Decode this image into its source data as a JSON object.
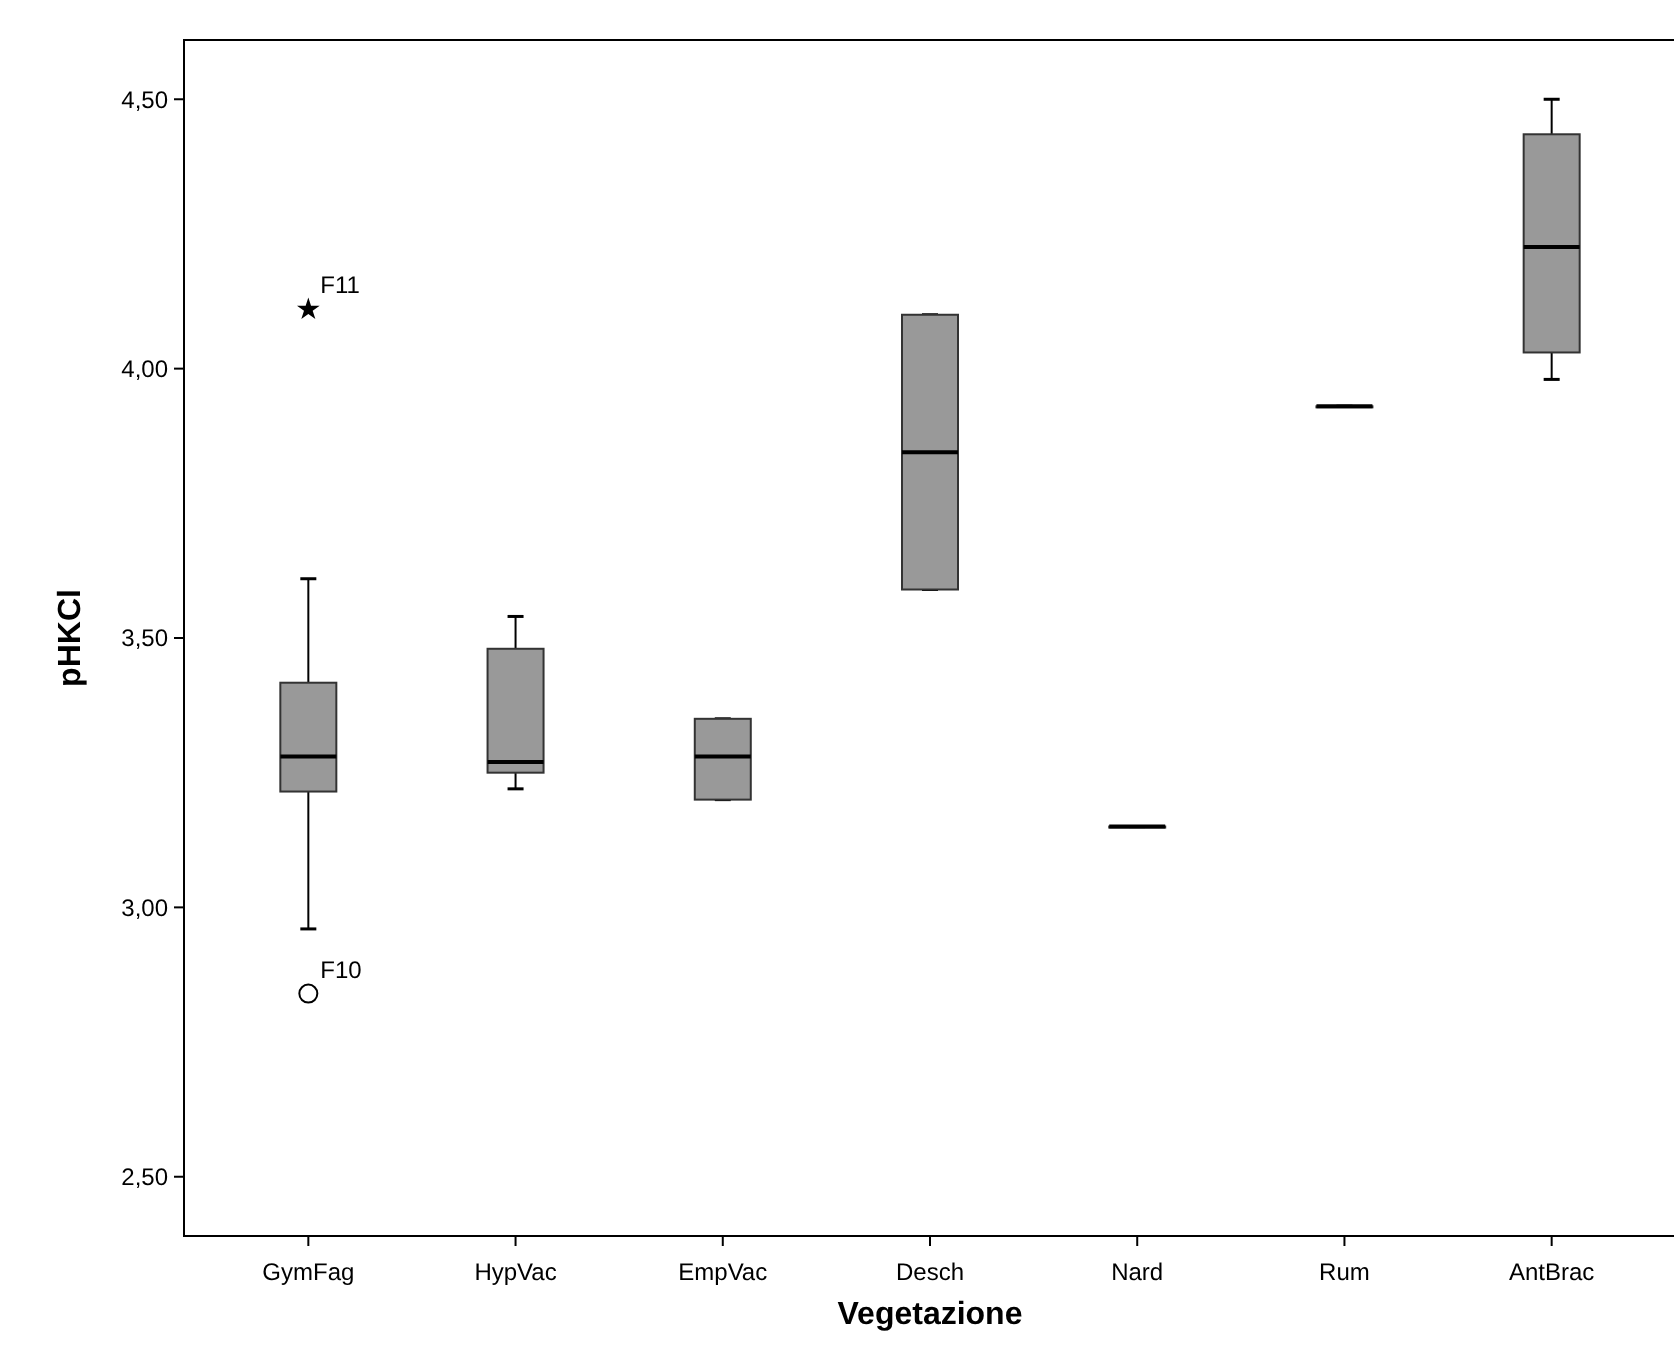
{
  "chart_data": {
    "type": "box",
    "xlabel": "Vegetazione",
    "ylabel": "pHKCl",
    "color": "#999999",
    "categories": [
      "GymFag",
      "HypVac",
      "EmpVac",
      "Desch",
      "Nard",
      "Rum",
      "AntBrac"
    ],
    "boxes": [
      {
        "low": 2.96,
        "q1": 3.215,
        "median": 3.28,
        "q3": 3.417,
        "high": 3.61,
        "outliers": [
          2.84,
          4.11
        ]
      },
      {
        "low": 3.22,
        "q1": 3.25,
        "median": 3.27,
        "q3": 3.48,
        "high": 3.54
      },
      {
        "low": 3.2,
        "q1": 3.2,
        "median": 3.28,
        "q3": 3.35,
        "high": 3.35
      },
      {
        "low": 3.59,
        "q1": 3.59,
        "median": 3.845,
        "q3": 4.1,
        "high": 4.1
      },
      {
        "low": 3.15,
        "q1": 3.15,
        "median": 3.15,
        "q3": 3.15,
        "high": 3.15
      },
      {
        "low": 3.93,
        "q1": 3.93,
        "median": 3.93,
        "q3": 3.93,
        "high": 3.93
      },
      {
        "low": 3.98,
        "q1": 4.03,
        "median": 4.226,
        "q3": 4.435,
        "high": 4.5
      }
    ],
    "annotations": [
      "F10",
      "F11"
    ],
    "ylim": [
      2.39,
      4.61
    ],
    "yticks": [
      {
        "value": 2.5,
        "label": "2,50"
      },
      {
        "value": 3,
        "label": "3,00"
      },
      {
        "value": 3.5,
        "label": "3,50"
      },
      {
        "value": 4,
        "label": "4,00"
      },
      {
        "value": 4.5,
        "label": "4,50"
      }
    ],
    "grid": false
  }
}
